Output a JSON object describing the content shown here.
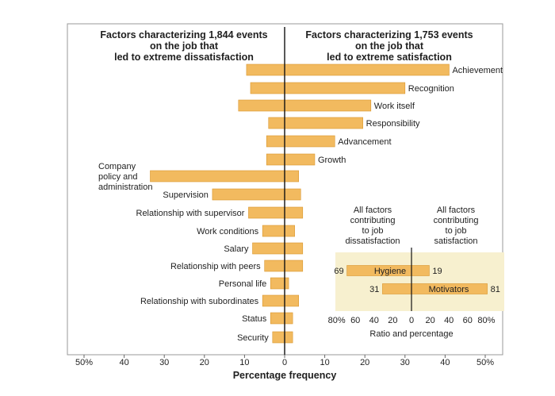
{
  "chart_data": [
    {
      "type": "bar",
      "orientation": "horizontal",
      "title_left": [
        "Factors characterizing 1,844 events",
        "on the job that",
        "led to extreme dissatisfaction"
      ],
      "title_right": [
        "Factors characterizing 1,753 events",
        "on the job that",
        "led to extreme satisfaction"
      ],
      "xlabel": "Percentage frequency",
      "x_ticks": [
        "50%",
        "40",
        "30",
        "20",
        "10",
        "0",
        "10",
        "20",
        "30",
        "40",
        "50%"
      ],
      "xlim": [
        -50,
        50
      ],
      "categories": [
        "Achievement",
        "Recognition",
        "Work itself",
        "Responsibility",
        "Advancement",
        "Growth",
        "Company policy and administration",
        "Supervision",
        "Relationship with supervisor",
        "Work conditions",
        "Salary",
        "Relationship with peers",
        "Personal life",
        "Relationship with subordinates",
        "Status",
        "Security"
      ],
      "category_label_lines": {
        "Company policy and administration": [
          "Company",
          "policy and",
          "administration"
        ]
      },
      "series": [
        {
          "name": "",
          "side": "dissatisfaction",
          "color": "#f2ba5f",
          "values": [
            9.5,
            8.5,
            11.5,
            4,
            4.5,
            4.5,
            33.5,
            18,
            9,
            5.5,
            8,
            5,
            3.5,
            5.5,
            3.5,
            3
          ]
        },
        {
          "name": "",
          "side": "satisfaction",
          "color": "#f2ba5f",
          "values": [
            41,
            30,
            21.5,
            19.5,
            12.5,
            7.5,
            3.5,
            4,
            4.5,
            2.5,
            4.5,
            4.5,
            1,
            3.5,
            2,
            2
          ]
        }
      ]
    },
    {
      "type": "bar",
      "orientation": "horizontal",
      "header_left": [
        "All factors",
        "contributing",
        "to job",
        "dissatisfaction"
      ],
      "header_right": [
        "All factors",
        "contributing",
        "to job",
        "satisfaction"
      ],
      "xlabel": "Ratio and percentage",
      "x_ticks": [
        "80%",
        "60",
        "40",
        "20",
        "0",
        "20",
        "40",
        "60",
        "80%"
      ],
      "xlim": [
        -80,
        80
      ],
      "categories": [
        "Hygiene",
        "Motivators"
      ],
      "dissatisfaction_values": [
        69,
        31
      ],
      "satisfaction_values": [
        19,
        81
      ],
      "bar_color": "#f2ba5f",
      "panel_color": "#f7f0cf"
    }
  ]
}
